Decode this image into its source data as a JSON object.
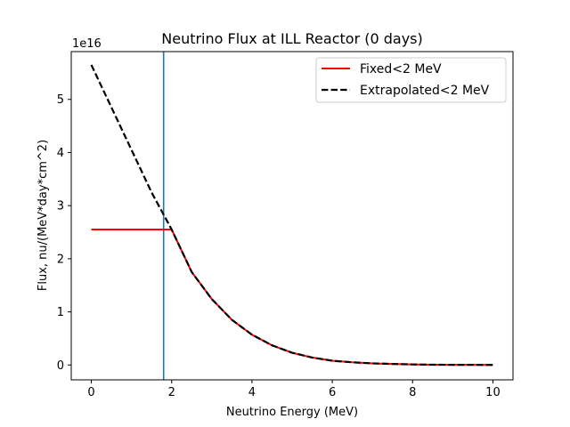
{
  "chart_data": {
    "type": "line",
    "title": "Neutrino Flux at ILL Reactor (0 days)",
    "xlabel": "Neutrino Energy (MeV)",
    "ylabel": "Flux, nu/(MeV*day*cm^2)",
    "y_offset_label": "1e16",
    "xlim": [
      -0.5,
      10.5
    ],
    "ylim": [
      -0.28,
      5.9
    ],
    "x_ticks": [
      0,
      2,
      4,
      6,
      8,
      10
    ],
    "y_ticks": [
      0,
      1,
      2,
      3,
      4,
      5
    ],
    "grid": false,
    "legend_position": "upper right",
    "vline": {
      "x": 1.8,
      "color": "#1f77b4"
    },
    "series": [
      {
        "name": "Fixed<2 MeV",
        "style": "solid",
        "color": "#ff0000",
        "x": [
          0,
          0.5,
          1.0,
          1.5,
          2.0,
          2.5,
          3.0,
          3.5,
          4.0,
          4.5,
          5.0,
          5.5,
          6.0,
          6.5,
          7.0,
          7.5,
          8.0,
          8.5,
          9.0,
          9.5,
          10.0
        ],
        "y": [
          2.55,
          2.55,
          2.55,
          2.55,
          2.55,
          1.75,
          1.24,
          0.85,
          0.57,
          0.37,
          0.23,
          0.14,
          0.08,
          0.05,
          0.03,
          0.02,
          0.01,
          0.005,
          0.003,
          0.002,
          0.0
        ]
      },
      {
        "name": "Extrapolated<2 MeV",
        "style": "dashed",
        "color": "#000000",
        "x": [
          0,
          0.5,
          1.0,
          1.5,
          2.0,
          2.5,
          3.0,
          3.5,
          4.0,
          4.5,
          5.0,
          5.5,
          6.0,
          6.5,
          7.0,
          7.5,
          8.0,
          8.5,
          9.0,
          9.5,
          10.0
        ],
        "y": [
          5.65,
          4.85,
          4.05,
          3.25,
          2.55,
          1.75,
          1.24,
          0.85,
          0.57,
          0.37,
          0.23,
          0.14,
          0.08,
          0.05,
          0.03,
          0.02,
          0.01,
          0.005,
          0.003,
          0.002,
          0.0
        ]
      }
    ]
  }
}
